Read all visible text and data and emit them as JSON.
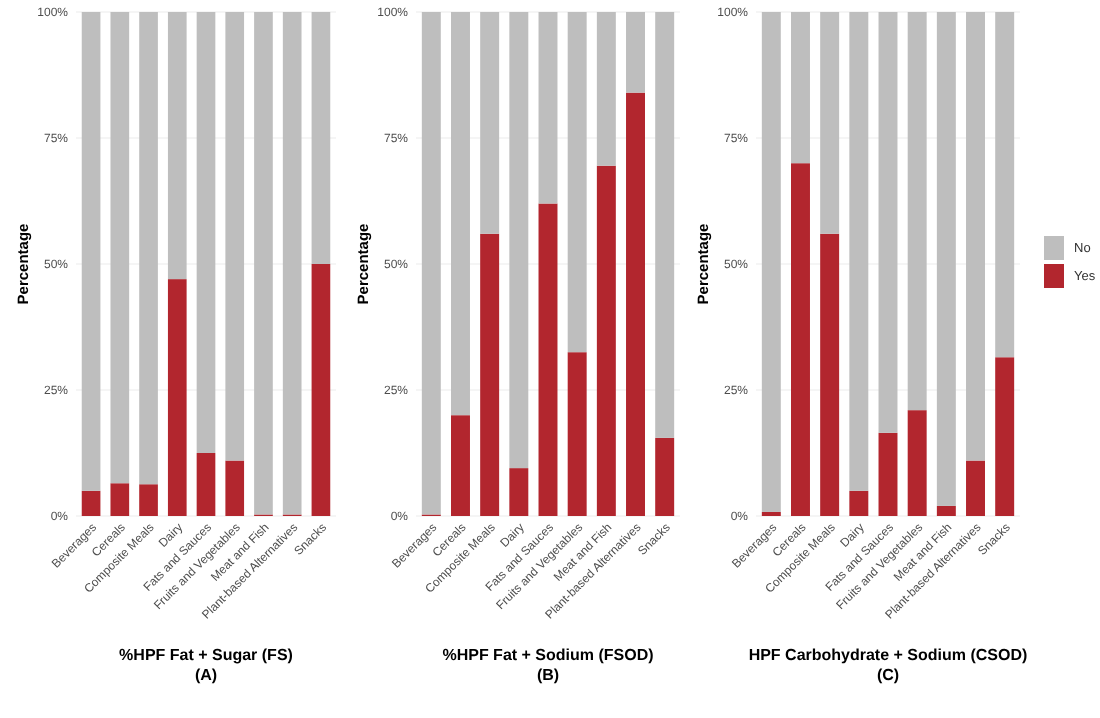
{
  "chart_data": [
    {
      "type": "bar",
      "stacked": true,
      "xlabel": "%HPF Fat + Sugar (FS)\n(A)",
      "ylabel": "Percentage",
      "categories": [
        "Beverages",
        "Cereals",
        "Composite Meals",
        "Dairy",
        "Fats and Sauces",
        "Fruits and Vegetables",
        "Meat and Fish",
        "Plant-based Alternatives",
        "Snacks"
      ],
      "series": [
        {
          "color": "#b2262e",
          "values": [
            5,
            6.5,
            6.3,
            47,
            12.5,
            11,
            0.3,
            0.3,
            50
          ]
        },
        {
          "color": "#bebebe",
          "values": [
            95,
            93.5,
            93.7,
            53,
            87.5,
            89,
            99.7,
            99.7,
            50
          ]
        }
      ],
      "ylim": [
        0,
        100
      ],
      "yticks": [
        {
          "value": 0,
          "label": "0%"
        },
        {
          "value": 25,
          "label": "25%"
        },
        {
          "value": 50,
          "label": "50%"
        },
        {
          "value": 75,
          "label": "75%"
        },
        {
          "value": 100,
          "label": "100%"
        }
      ],
      "grid": "y"
    },
    {
      "type": "bar",
      "stacked": true,
      "xlabel": "%HPF Fat + Sodium (FSOD)\n(B)",
      "ylabel": "Percentage",
      "categories": [
        "Beverages",
        "Cereals",
        "Composite Meals",
        "Dairy",
        "Fats and Sauces",
        "Fruits and Vegetables",
        "Meat and Fish",
        "Plant-based Alternatives",
        "Snacks"
      ],
      "series": [
        {
          "color": "#b2262e",
          "values": [
            0.3,
            20,
            56,
            9.5,
            62,
            32.5,
            69.5,
            84,
            15.5
          ]
        },
        {
          "color": "#bebebe",
          "values": [
            99.7,
            80,
            44,
            90.5,
            38,
            67.5,
            30.5,
            16,
            84.5
          ]
        }
      ],
      "ylim": [
        0,
        100
      ],
      "yticks": [
        {
          "value": 0,
          "label": "0%"
        },
        {
          "value": 25,
          "label": "25%"
        },
        {
          "value": 50,
          "label": "50%"
        },
        {
          "value": 75,
          "label": "75%"
        },
        {
          "value": 100,
          "label": "100%"
        }
      ],
      "grid": "y"
    },
    {
      "type": "bar",
      "stacked": true,
      "xlabel": "HPF Carbohydrate + Sodium (CSOD)\n(C)",
      "ylabel": "Percentage",
      "categories": [
        "Beverages",
        "Cereals",
        "Composite Meals",
        "Dairy",
        "Fats and Sauces",
        "Fruits and Vegetables",
        "Meat and Fish",
        "Plant-based Alternatives",
        "Snacks"
      ],
      "series": [
        {
          "name": "Yes",
          "color": "#b2262e",
          "values": [
            0.8,
            70,
            56,
            5,
            16.5,
            21,
            2,
            11,
            31.5
          ]
        },
        {
          "name": "No",
          "color": "#bebebe",
          "values": [
            99.2,
            30,
            44,
            95,
            83.5,
            79,
            98,
            89,
            68.5
          ]
        }
      ],
      "ylim": [
        0,
        100
      ],
      "yticks": [
        {
          "value": 0,
          "label": "0%"
        },
        {
          "value": 25,
          "label": "25%"
        },
        {
          "value": 50,
          "label": "50%"
        },
        {
          "value": 75,
          "label": "75%"
        },
        {
          "value": 100,
          "label": "100%"
        }
      ],
      "grid": "y",
      "legend": "right"
    }
  ]
}
